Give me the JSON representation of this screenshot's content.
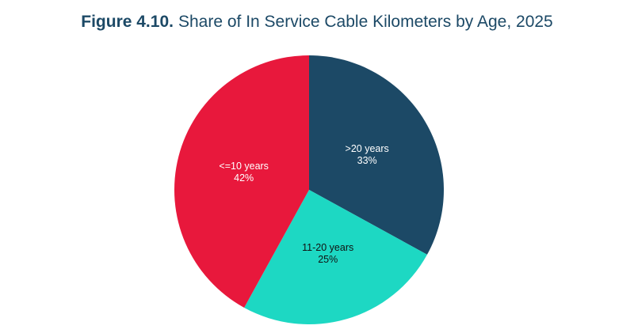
{
  "chart_data": {
    "type": "pie",
    "title_label": "Figure 4.10.",
    "title": "Share of In Service Cable Kilometers by Age, 2025",
    "categories": [
      ">20 years",
      "11-20 years",
      "<=10 years"
    ],
    "values": [
      33,
      25,
      42
    ],
    "value_labels": [
      "33%",
      "25%",
      "42%"
    ],
    "colors": [
      "#1c4966",
      "#1dd8c3",
      "#e8183c"
    ],
    "start_angle": 90,
    "direction": "clockwise"
  }
}
